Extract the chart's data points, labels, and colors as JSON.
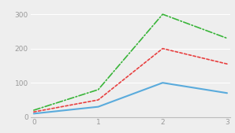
{
  "x": [
    0,
    1,
    2,
    3
  ],
  "blue_y": [
    10,
    30,
    100,
    70
  ],
  "red_y": [
    15,
    50,
    200,
    155
  ],
  "green_y": [
    20,
    80,
    300,
    230
  ],
  "blue_color": "#5aabdc",
  "red_color": "#e84040",
  "green_color": "#3ab53a",
  "xlim": [
    -0.05,
    3.05
  ],
  "ylim": [
    0,
    330
  ],
  "yticks": [
    0,
    100,
    200,
    300
  ],
  "xticks": [
    0,
    1,
    2,
    3
  ],
  "background_color": "#eeeeee",
  "grid_color": "#ffffff",
  "title": ""
}
